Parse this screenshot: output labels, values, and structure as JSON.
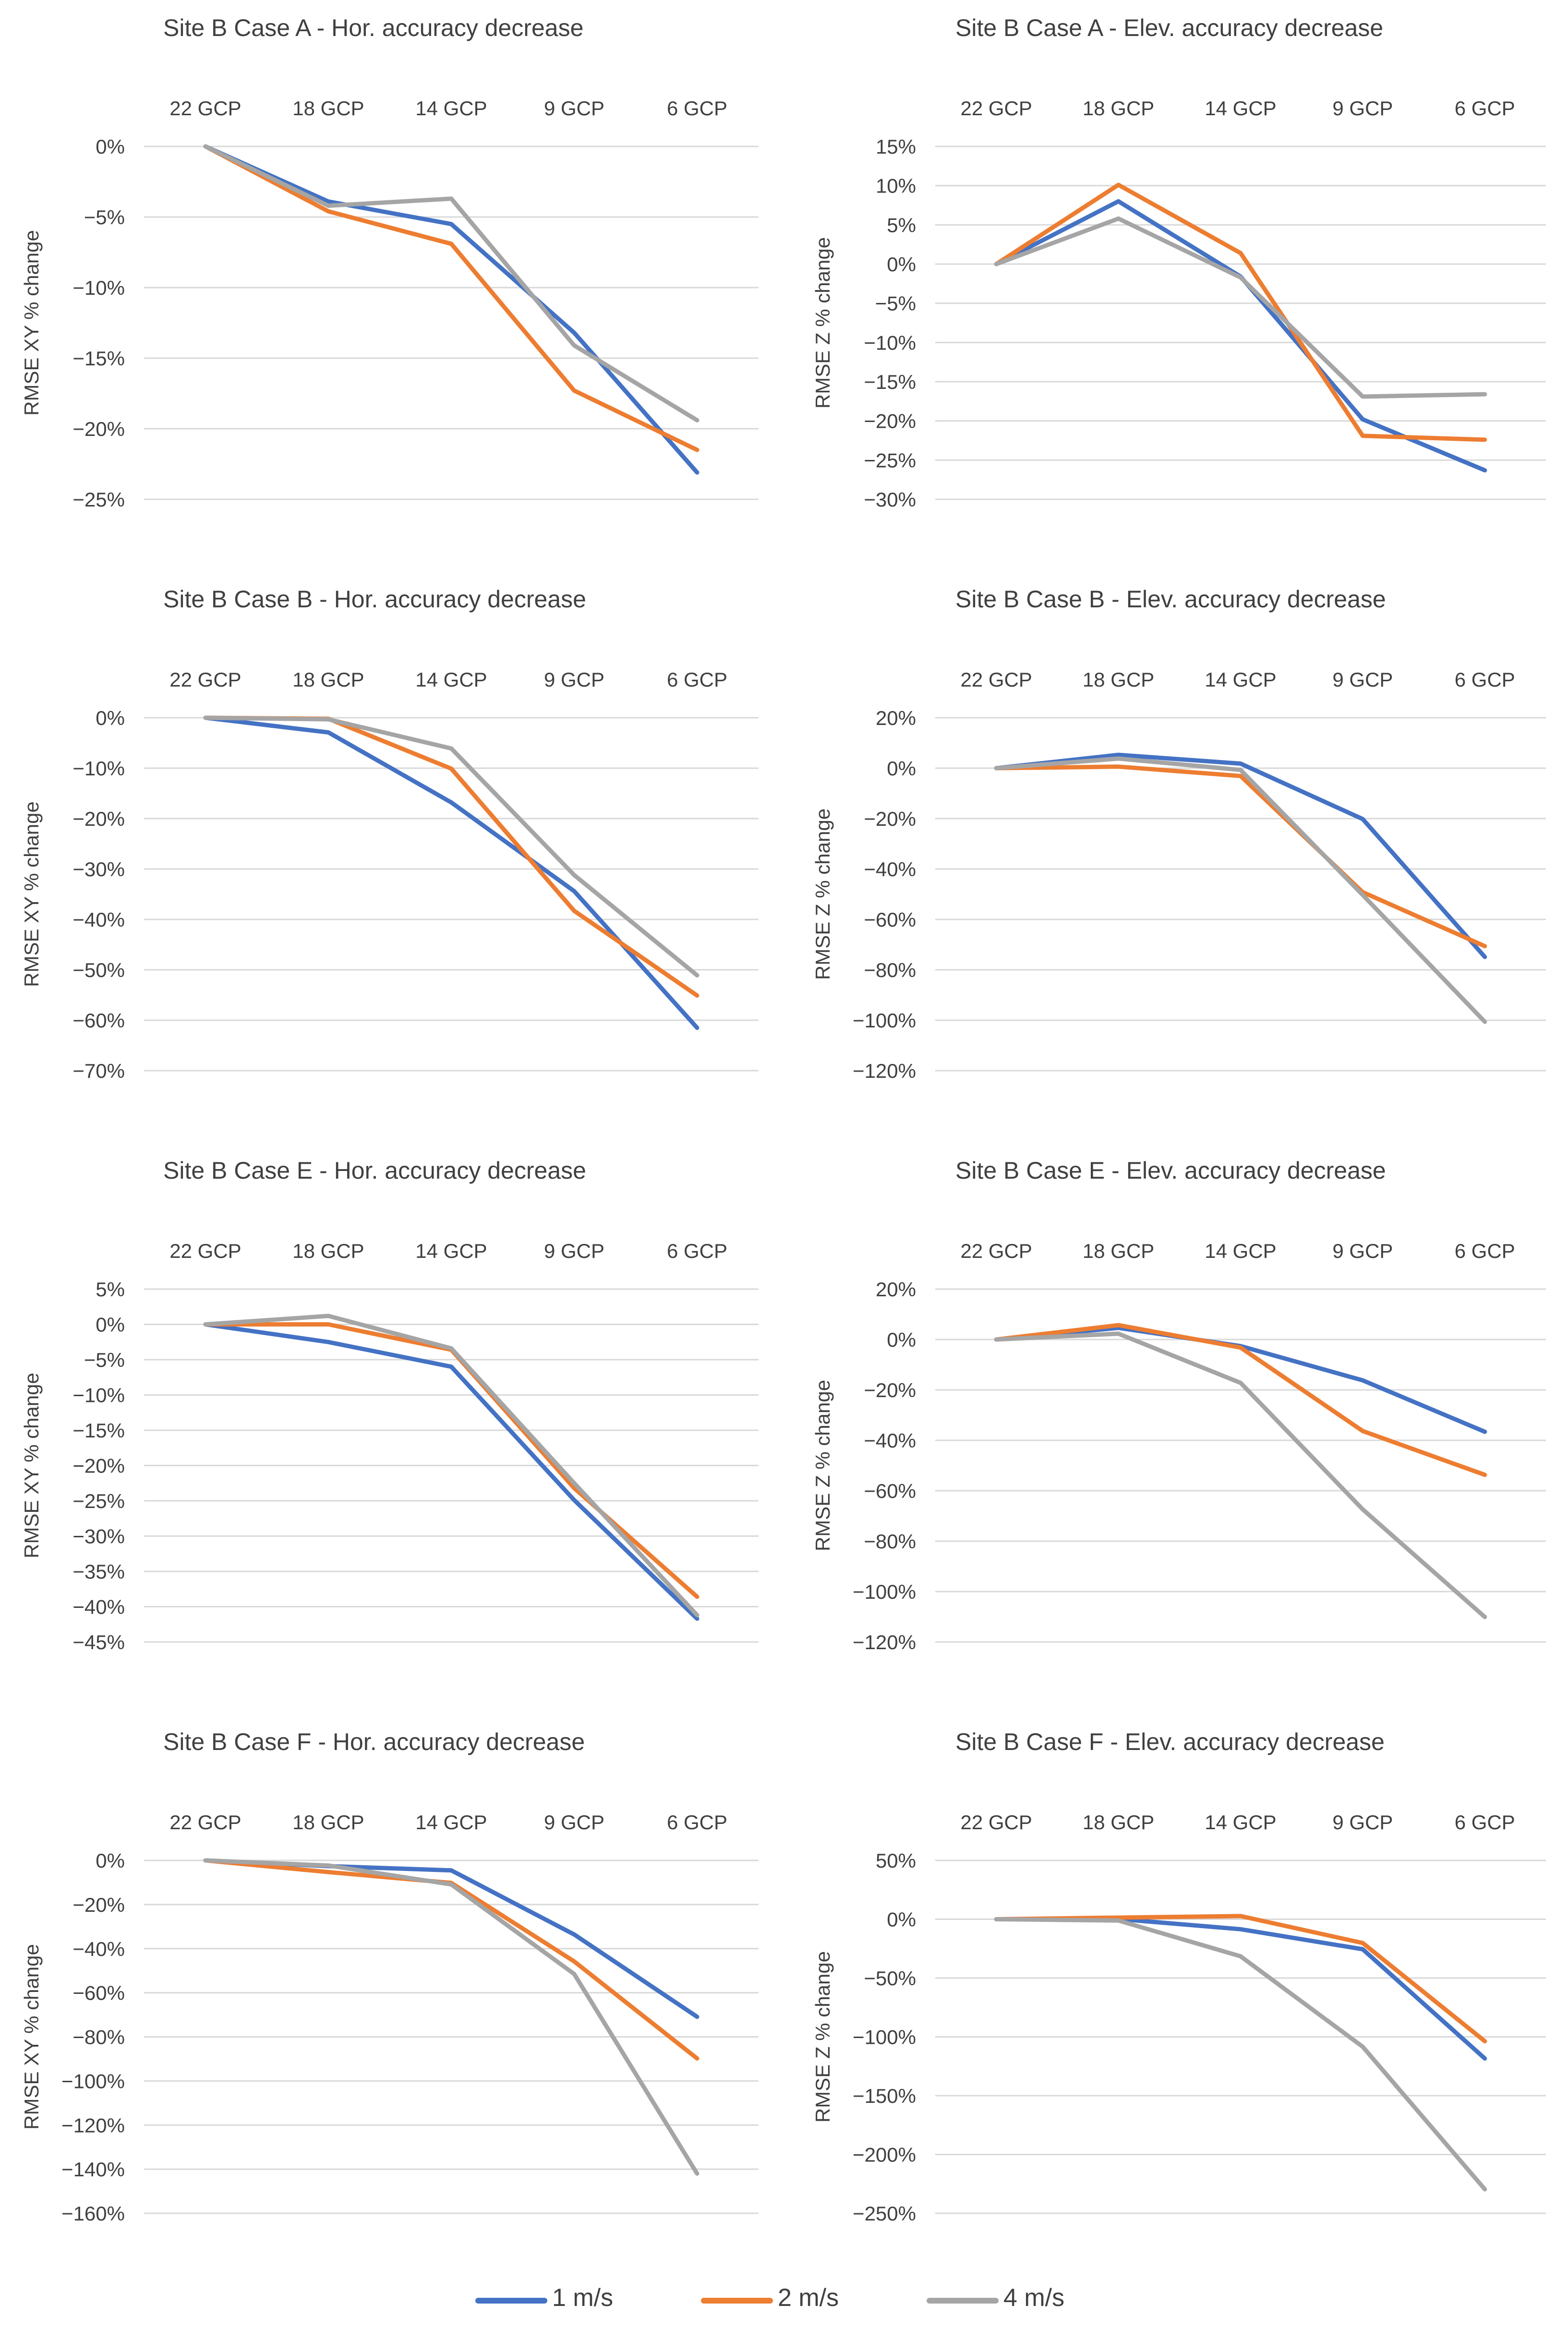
{
  "categories": [
    "22 GCP",
    "18 GCP",
    "14 GCP",
    "9 GCP",
    "6 GCP"
  ],
  "series_names": [
    "1 m/s",
    "2 m/s",
    "4 m/s"
  ],
  "series_colors": [
    "#4472C4",
    "#ED7D31",
    "#A5A5A5"
  ],
  "chart_data": [
    {
      "type": "line",
      "title": "Site B Case A - Hor. accuracy decrease",
      "ylabel": "RMSE XY % change",
      "ylim": [
        -25,
        0
      ],
      "yticks": [
        0,
        -5,
        -10,
        -15,
        -20,
        -25
      ],
      "ytick_labels": [
        "0%",
        "−5%",
        "−10%",
        "−15%",
        "−20%",
        "−25%"
      ],
      "series": [
        {
          "name": "1 m/s",
          "values": [
            0,
            -3.9,
            -5.5,
            -13.2,
            -23.1
          ]
        },
        {
          "name": "2 m/s",
          "values": [
            0,
            -4.6,
            -6.9,
            -17.3,
            -21.5
          ]
        },
        {
          "name": "4 m/s",
          "values": [
            0,
            -4.2,
            -3.7,
            -14.1,
            -19.4
          ]
        }
      ]
    },
    {
      "type": "line",
      "title": "Site B Case A - Elev. accuracy decrease",
      "ylabel": "RMSE Z % change",
      "ylim": [
        -30,
        15
      ],
      "yticks": [
        15,
        10,
        5,
        0,
        -5,
        -10,
        -15,
        -20,
        -25,
        -30
      ],
      "ytick_labels": [
        "15%",
        "10%",
        "5%",
        "0%",
        "−5%",
        "−10%",
        "−15%",
        "−20%",
        "−25%",
        "−30%"
      ],
      "series": [
        {
          "name": "1 m/s",
          "values": [
            0,
            8,
            -1.6,
            -19.8,
            -26.3
          ]
        },
        {
          "name": "2 m/s",
          "values": [
            0,
            10.1,
            1.4,
            -21.9,
            -22.4
          ]
        },
        {
          "name": "4 m/s",
          "values": [
            0,
            5.8,
            -1.7,
            -16.9,
            -16.6
          ]
        }
      ]
    },
    {
      "type": "line",
      "title": "Site B Case B - Hor. accuracy decrease",
      "ylabel": "RMSE XY % change",
      "ylim": [
        -70,
        0
      ],
      "yticks": [
        0,
        -10,
        -20,
        -30,
        -40,
        -50,
        -60,
        -70
      ],
      "ytick_labels": [
        "0%",
        "−10%",
        "−20%",
        "−30%",
        "−40%",
        "−50%",
        "−60%",
        "−70%"
      ],
      "series": [
        {
          "name": "1 m/s",
          "values": [
            0,
            -2.9,
            -16.8,
            -34.4,
            -61.5
          ]
        },
        {
          "name": "2 m/s",
          "values": [
            0,
            -0.2,
            -10.1,
            -38.3,
            -55.1
          ]
        },
        {
          "name": "4 m/s",
          "values": [
            0,
            -0.3,
            -6.1,
            -31.2,
            -51.1
          ]
        }
      ]
    },
    {
      "type": "line",
      "title": "Site B Case B - Elev. accuracy decrease",
      "ylabel": "RMSE Z % change",
      "ylim": [
        -120,
        20
      ],
      "yticks": [
        20,
        0,
        -20,
        -40,
        -60,
        -80,
        -100,
        -120
      ],
      "ytick_labels": [
        "20%",
        "0%",
        "−20%",
        "−40%",
        "−60%",
        "−80%",
        "−100%",
        "−120%"
      ],
      "series": [
        {
          "name": "1 m/s",
          "values": [
            0,
            5.3,
            1.8,
            -20.2,
            -74.9
          ]
        },
        {
          "name": "2 m/s",
          "values": [
            0,
            0.6,
            -3.1,
            -49.2,
            -70.6
          ]
        },
        {
          "name": "4 m/s",
          "values": [
            0,
            3.8,
            -0.7,
            -50.3,
            -100.6
          ]
        }
      ]
    },
    {
      "type": "line",
      "title": "Site B Case E - Hor. accuracy decrease",
      "ylabel": "RMSE XY % change",
      "ylim": [
        -45,
        5
      ],
      "yticks": [
        5,
        0,
        -5,
        -10,
        -15,
        -20,
        -25,
        -30,
        -35,
        -40,
        -45
      ],
      "ytick_labels": [
        "5%",
        "0%",
        "−5%",
        "−10%",
        "−15%",
        "−20%",
        "−25%",
        "−30%",
        "−35%",
        "−40%",
        "−45%"
      ],
      "series": [
        {
          "name": "1 m/s",
          "values": [
            0,
            -2.5,
            -6,
            -24.9,
            -41.7
          ]
        },
        {
          "name": "2 m/s",
          "values": [
            0,
            0,
            -3.6,
            -23.2,
            -38.6
          ]
        },
        {
          "name": "4 m/s",
          "values": [
            0,
            1.2,
            -3.4,
            -22.5,
            -41.2
          ]
        }
      ]
    },
    {
      "type": "line",
      "title": "Site B Case E - Elev. accuracy decrease",
      "ylabel": "RMSE Z % change",
      "ylim": [
        -120,
        20
      ],
      "yticks": [
        20,
        0,
        -20,
        -40,
        -60,
        -80,
        -100,
        -120
      ],
      "ytick_labels": [
        "20%",
        "0%",
        "−20%",
        "−40%",
        "−60%",
        "−80%",
        "−100%",
        "−120%"
      ],
      "series": [
        {
          "name": "1 m/s",
          "values": [
            0,
            4.6,
            -2.6,
            -16.2,
            -36.6
          ]
        },
        {
          "name": "2 m/s",
          "values": [
            0,
            5.7,
            -3.2,
            -36.3,
            -53.7
          ]
        },
        {
          "name": "4 m/s",
          "values": [
            0,
            2.3,
            -17.2,
            -67.4,
            -110.1
          ]
        }
      ]
    },
    {
      "type": "line",
      "title": "Site B Case F - Hor. accuracy decrease",
      "ylabel": "RMSE XY % change",
      "ylim": [
        -160,
        0
      ],
      "yticks": [
        0,
        -20,
        -40,
        -60,
        -80,
        -100,
        -120,
        -140,
        -160
      ],
      "ytick_labels": [
        "0%",
        "−20%",
        "−40%",
        "−60%",
        "−80%",
        "−100%",
        "−120%",
        "−140%",
        "−160%"
      ],
      "series": [
        {
          "name": "1 m/s",
          "values": [
            0,
            -2.6,
            -4.5,
            -33.6,
            -70.9
          ]
        },
        {
          "name": "2 m/s",
          "values": [
            0,
            -5.3,
            -10.2,
            -45.8,
            -89.8
          ]
        },
        {
          "name": "4 m/s",
          "values": [
            0,
            -2.3,
            -10.9,
            -51.5,
            -142
          ]
        }
      ]
    },
    {
      "type": "line",
      "title": "Site B Case F - Elev. accuracy decrease",
      "ylabel": "RMSE Z % change",
      "ylim": [
        -250,
        50
      ],
      "yticks": [
        50,
        0,
        -50,
        -100,
        -150,
        -200,
        -250
      ],
      "ytick_labels": [
        "50%",
        "0%",
        "−50%",
        "−100%",
        "−150%",
        "−200%",
        "−250%"
      ],
      "series": [
        {
          "name": "1 m/s",
          "values": [
            0,
            0.2,
            -8.5,
            -25.5,
            -118.4
          ]
        },
        {
          "name": "2 m/s",
          "values": [
            0,
            1.4,
            2.7,
            -20.2,
            -103.7
          ]
        },
        {
          "name": "4 m/s",
          "values": [
            0,
            -1.1,
            -31.5,
            -108.4,
            -229.6
          ]
        }
      ]
    }
  ]
}
